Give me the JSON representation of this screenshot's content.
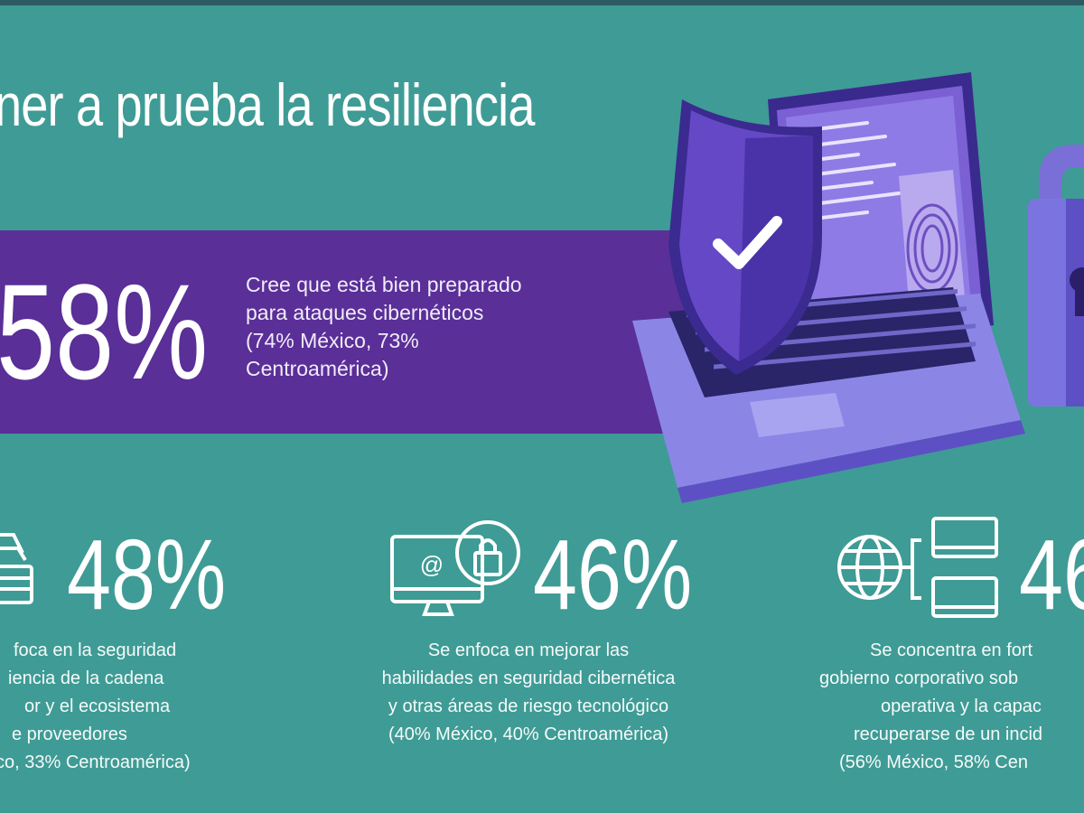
{
  "title": "ner a prueba la resiliencia",
  "highlight": {
    "value": "58%",
    "lines": [
      "Cree que está bien preparado",
      "para ataques cibernéticos",
      "(74% México, 73%",
      "Centroamérica)"
    ]
  },
  "stats": [
    {
      "value": "48%",
      "icon": "supply-chain-icon",
      "lines": [
        "foca en la seguridad",
        "iencia de la cadena",
        "or y el ecosistema",
        "e proveedores",
        "co, 33% Centroamérica)"
      ]
    },
    {
      "value": "46%",
      "icon": "email-lock-monitor-icon",
      "lines": [
        "Se enfoca en mejorar las",
        "habilidades en seguridad cibernética",
        "y otras áreas de riesgo tecnológico",
        "(40% México, 40% Centroamérica)"
      ]
    },
    {
      "value": "46",
      "icon": "globe-network-icon",
      "lines": [
        "Se concentra en fort",
        "gobierno corporativo sob",
        "operativa y la capac",
        "recuperarse de un incid",
        "(56% México, 58% Cen"
      ]
    }
  ],
  "colors": {
    "background": "#3f9b95",
    "band": "#5a2f98",
    "shield": "#5b3fb0",
    "laptop": "#8b86e6"
  }
}
